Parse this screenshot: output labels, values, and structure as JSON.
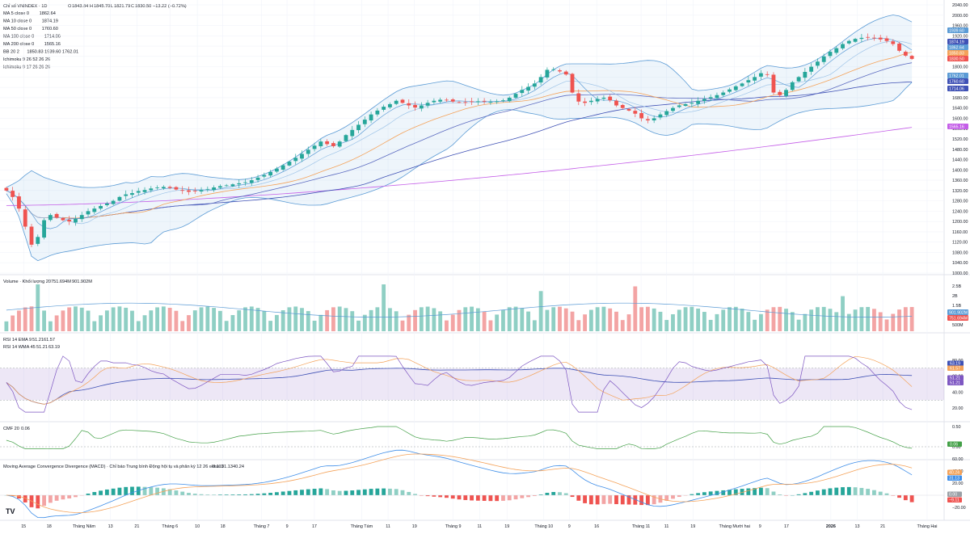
{
  "colors": {
    "up": "#26a69a",
    "down": "#ef5350",
    "vol_up": "#8fcfc4",
    "vol_down": "#f3a4a4",
    "ma5": "#5b9bd5",
    "ma10": "#9ec4e8",
    "ma50": "#f4a259",
    "ma100": "#3f51b5",
    "ma200": "#c45ee8",
    "bb": "#5b9bd5",
    "rsi": "#7e57c2",
    "rsi_ema": "#f4a259",
    "rsi_wma": "#3f51b5",
    "cmf": "#43a047",
    "macd": "#3f8ee8",
    "signal": "#f4a259"
  },
  "header": {
    "title": "Chỉ số VNINDEX · 1D",
    "o_label": "O",
    "o_value": "1843.84",
    "h_label": "H",
    "h_value": "1845.70",
    "l_label": "L",
    "l_value": "1821.79",
    "c_label": "C",
    "c_value": "1830.50",
    "change": "−13.22 (−0.72%)"
  },
  "legend": [
    {
      "name": "MA 5 close 0",
      "value": "1862.64",
      "color": "#5b9bd5"
    },
    {
      "name": "MA 10 close 0",
      "value": "1874.19",
      "color": "#5b9bd5"
    },
    {
      "name": "MA 50 close 0",
      "value": "1760.60",
      "color": "#3f51b5"
    },
    {
      "name": "MA 100 close 0",
      "value": "1714.06",
      "color": "#3f51b5"
    },
    {
      "name": "MA 200 close 0",
      "value": "1565.16",
      "color": "#3f51b5"
    },
    {
      "name": "BB 20 2",
      "value": "1850.83  1939.60  1762.01",
      "color": "#ef5350"
    },
    {
      "name": "Ichimoku 9 26 52 26 26",
      "value": "",
      "color": "#9aa0a6"
    },
    {
      "name": "Ichimoku 9 17 26 26 26",
      "value": "",
      "color": "#9aa0a6"
    }
  ],
  "price_axis": {
    "ticks": [
      "2040.00",
      "2000.00",
      "1960.00",
      "1920.00",
      "1880.00",
      "1840.00",
      "1800.00",
      "1760.00",
      "1720.00",
      "1680.00",
      "1640.00",
      "1600.00",
      "1560.00",
      "1520.00",
      "1480.00",
      "1440.00",
      "1400.00",
      "1360.00",
      "1320.00",
      "1280.00",
      "1240.00",
      "1200.00",
      "1160.00",
      "1120.00",
      "1080.00",
      "1040.00",
      "1000.00"
    ]
  },
  "price_tags": [
    {
      "text": "1939.60",
      "color": "#5b9bd5"
    },
    {
      "text": "1874.19",
      "color": "#3f51b5"
    },
    {
      "text": "1862.64",
      "color": "#5b9bd5"
    },
    {
      "text": "1850.83",
      "color": "#f4a259"
    },
    {
      "text": "1830.50",
      "color": "#ef5350"
    },
    {
      "text": "1762.01",
      "color": "#5b9bd5"
    },
    {
      "text": "1760.60",
      "color": "#3f51b5"
    },
    {
      "text": "1714.06",
      "color": "#3f51b5"
    },
    {
      "text": "1565.16",
      "color": "#c45ee8"
    }
  ],
  "volume": {
    "title": "Volume · Khối lượng 20",
    "v1": "751.694M",
    "v2": "901.902M",
    "axis": [
      "2.5B",
      "2B",
      "1.5B",
      "1B",
      "500M"
    ],
    "tags": [
      {
        "text": "901.902M",
        "color": "#5b9bd5"
      },
      {
        "text": "751.694M",
        "color": "#ef5350"
      }
    ]
  },
  "rsi": {
    "title1": "RSI 14 EMA 9",
    "t1v1": "51.21",
    "t1v2": "61.57",
    "title2": "RSI 14 WMA 45",
    "t2v1": "51.21",
    "t2v2": "63.19",
    "axis": [
      "80.00",
      "60.00",
      "40.00",
      "20.00"
    ],
    "tags": [
      {
        "text": "63.19",
        "color": "#3f51b5"
      },
      {
        "text": "61.57",
        "color": "#f4a259"
      },
      {
        "text": "51.21",
        "color": "#7e57c2"
      },
      {
        "text": "51.21",
        "color": "#7e57c2"
      }
    ]
  },
  "cmf": {
    "title": "CMF 20",
    "value": "0.06",
    "axis": [
      "0.50",
      "0.00"
    ],
    "tag": "0.06"
  },
  "macd": {
    "title": "Moving Average Convergence Divergence (MACD) · Chỉ báo Trung bình Động hội tụ và phân kỳ  12 26 close 9",
    "v1": "−9.11",
    "v2": "31.13",
    "v3": "40.24",
    "axis": [
      "60.00",
      "40.00",
      "20.00",
      "0.00",
      "−20.00"
    ],
    "tags": [
      {
        "text": "40.24",
        "color": "#f4a259"
      },
      {
        "text": "31.13",
        "color": "#3f8ee8"
      },
      {
        "text": "0.00",
        "color": "#9aa0a6"
      },
      {
        "text": "−9.11",
        "color": "#ef5350"
      }
    ]
  },
  "x_axis": [
    {
      "label": "15",
      "pos": 0.025
    },
    {
      "label": "18",
      "pos": 0.052
    },
    {
      "label": "Tháng Năm",
      "pos": 0.089
    },
    {
      "label": "13",
      "pos": 0.117
    },
    {
      "label": "21",
      "pos": 0.145
    },
    {
      "label": "Tháng 6",
      "pos": 0.18
    },
    {
      "label": "10",
      "pos": 0.209
    },
    {
      "label": "18",
      "pos": 0.236
    },
    {
      "label": "Tháng 7",
      "pos": 0.277
    },
    {
      "label": "9",
      "pos": 0.304
    },
    {
      "label": "17",
      "pos": 0.333
    },
    {
      "label": "Tháng Tám",
      "pos": 0.383
    },
    {
      "label": "11",
      "pos": 0.411
    },
    {
      "label": "19",
      "pos": 0.439
    },
    {
      "label": "Tháng 9",
      "pos": 0.48
    },
    {
      "label": "11",
      "pos": 0.508
    },
    {
      "label": "19",
      "pos": 0.537
    },
    {
      "label": "Tháng 10",
      "pos": 0.576
    },
    {
      "label": "9",
      "pos": 0.603
    },
    {
      "label": "16",
      "pos": 0.632
    },
    {
      "label": "Tháng 11",
      "pos": 0.679
    },
    {
      "label": "11",
      "pos": 0.706
    },
    {
      "label": "19",
      "pos": 0.734
    },
    {
      "label": "Tháng Mười hai",
      "pos": 0.778
    },
    {
      "label": "9",
      "pos": 0.805
    },
    {
      "label": "17",
      "pos": 0.833
    },
    {
      "label": "2026",
      "pos": 0.88
    },
    {
      "label": "13",
      "pos": 0.908
    },
    {
      "label": "21",
      "pos": 0.935
    },
    {
      "label": "Tháng Hai",
      "pos": 0.982
    }
  ],
  "chart_data": {
    "type": "candlestick",
    "symbol": "VNINDEX",
    "interval": "1D",
    "ylim": [
      1000,
      2040
    ],
    "closes": [
      1320,
      1295,
      1250,
      1180,
      1110,
      1140,
      1205,
      1225,
      1215,
      1205,
      1200,
      1210,
      1225,
      1240,
      1250,
      1260,
      1270,
      1280,
      1295,
      1305,
      1310,
      1318,
      1322,
      1328,
      1332,
      1334,
      1330,
      1324,
      1320,
      1315,
      1318,
      1322,
      1326,
      1332,
      1337,
      1340,
      1344,
      1348,
      1352,
      1360,
      1370,
      1380,
      1392,
      1405,
      1418,
      1432,
      1447,
      1462,
      1478,
      1494,
      1510,
      1500,
      1492,
      1510,
      1535,
      1555,
      1575,
      1595,
      1615,
      1630,
      1645,
      1655,
      1668,
      1660,
      1650,
      1642,
      1650,
      1660,
      1668,
      1672,
      1670,
      1665,
      1662,
      1662,
      1664,
      1666,
      1665,
      1664,
      1666,
      1670,
      1680,
      1695,
      1710,
      1722,
      1735,
      1760,
      1788,
      1790,
      1782,
      1770,
      1700,
      1665,
      1660,
      1668,
      1675,
      1680,
      1670,
      1650,
      1640,
      1630,
      1618,
      1600,
      1592,
      1600,
      1615,
      1628,
      1640,
      1650,
      1655,
      1660,
      1668,
      1675,
      1682,
      1690,
      1700,
      1712,
      1724,
      1735,
      1748,
      1760,
      1775,
      1770,
      1700,
      1690,
      1710,
      1740,
      1760,
      1780,
      1800,
      1820,
      1840,
      1858,
      1872,
      1888,
      1900,
      1908,
      1912,
      1915,
      1912,
      1906,
      1900,
      1888,
      1862,
      1843,
      1830.5
    ],
    "series_last_values": {
      "ma5": 1862.64,
      "ma10": 1874.19,
      "ma50": 1760.6,
      "ma100": 1714.06,
      "ma200": 1565.16,
      "bb_basis": 1850.83,
      "bb_upper": 1939.6,
      "bb_lower": 1762.01
    },
    "ohlc_last": {
      "open": 1843.84,
      "high": 1845.7,
      "low": 1821.79,
      "close": 1830.5,
      "change": -13.22,
      "change_pct": -0.72
    },
    "volume_last": 751.694,
    "volume_ma20_last": 901.902,
    "rsi_last": 51.21,
    "rsi_ema_last": 61.57,
    "rsi_wma_last": 63.19,
    "cmf_last": 0.06,
    "macd_last": {
      "histogram": -9.11,
      "macd": 31.13,
      "signal": 40.24
    }
  }
}
